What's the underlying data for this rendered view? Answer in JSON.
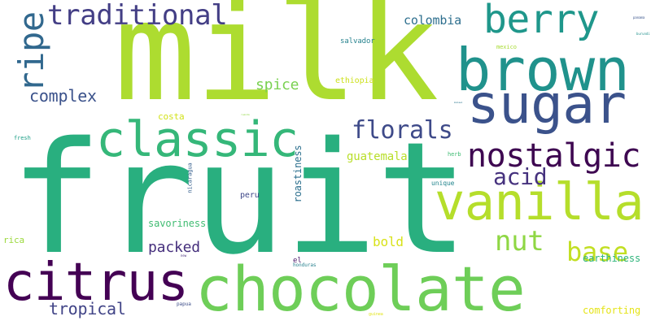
{
  "words": {
    "fruit": "fruit",
    "milk": "milk",
    "chocolate": "chocolate",
    "brown": "brown",
    "sugar": "sugar",
    "citrus": "citrus",
    "classic": "classic",
    "vanilla": "vanilla",
    "berry": "berry",
    "nostalgic": "nostalgic",
    "traditional": "traditional",
    "ripe": "ripe",
    "florals": "florals",
    "nut": "nut",
    "base": "base",
    "acid": "acid",
    "complex": "complex",
    "spice": "spice",
    "colombia": "colombia",
    "guatemala": "guatemala",
    "tropical": "tropical",
    "packed": "packed",
    "bold": "bold",
    "roastiness": "roastiness",
    "savoriness": "savoriness",
    "earthiness": "earthiness",
    "comforting": "comforting",
    "ethiopia": "ethiopia",
    "salvador": "salvador",
    "costa": "costa",
    "peru": "peru",
    "rica": "rica",
    "el": "el",
    "honduras": "honduras",
    "nicaragua": "nicaragua",
    "unique": "unique",
    "herb": "herb",
    "fresh": "fresh",
    "mexico": "mexico",
    "papua": "papua",
    "new": "new",
    "guinea": "guinea",
    "panama": "panama",
    "burundi": "burundi",
    "malawi": "malawi",
    "rwanda": "rwanda"
  },
  "colors": {
    "background": "#ffffff",
    "palette": "viridis"
  }
}
